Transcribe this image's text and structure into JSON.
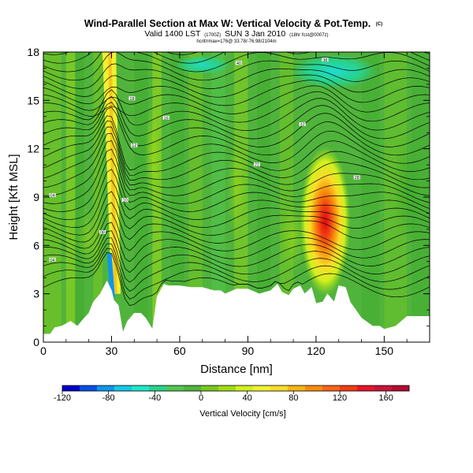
{
  "chart_data": {
    "type": "heatmap",
    "title": "Wind-Parallel Section at Max W: Vertical Velocity & Pot.Temp.",
    "title_tag": "(C)",
    "subtitle": "Valid 1400 LST",
    "subtitle_time": "(1700Z)",
    "subtitle_date": "SUN 3 Jan 2010",
    "subtitle_run": "(18hr fcst@0007z)",
    "subtitle_detail": "hcrit/rmax=176@ 33.78/-76.98/2104m",
    "xlabel": "Distance [nm]",
    "ylabel": "Height [Kft MSL]",
    "xlim": [
      0,
      170
    ],
    "ylim": [
      0,
      18
    ],
    "x_ticks": [
      0,
      30,
      60,
      90,
      120,
      150
    ],
    "y_ticks": [
      0,
      3,
      6,
      9,
      12,
      15,
      18
    ],
    "colorbar": {
      "label": "Vertical Velocity [cm/s]",
      "range": [
        -120,
        180
      ],
      "ticks": [
        -120,
        -80,
        -40,
        0,
        40,
        80,
        120,
        160
      ],
      "colors": [
        "#0000c8",
        "#0050e6",
        "#0a96f0",
        "#14c8e6",
        "#1ee6c8",
        "#28d28c",
        "#50c850",
        "#50b43c",
        "#78c81e",
        "#a0dc14",
        "#d2f01e",
        "#f0f032",
        "#fadc28",
        "#fab414",
        "#fa8c0a",
        "#fa6414",
        "#f03c14",
        "#e61428",
        "#c8143c",
        "#b40a32"
      ]
    },
    "features": {
      "updraft_core": {
        "distance_nm": 124,
        "height_kft": 7.5,
        "max_w_cm_s": 176
      },
      "mountain_wave_band": {
        "distance_nm_at_surface": 31,
        "distance_nm_at_top": 26,
        "sign": "up-down pair"
      }
    },
    "terrain_profile": {
      "distance_nm": [
        0,
        3,
        5,
        8,
        12,
        15,
        18,
        20,
        22,
        25,
        28,
        30,
        31,
        33,
        35,
        37,
        40,
        43,
        45,
        48,
        50,
        53,
        55,
        60,
        65,
        70,
        75,
        78,
        80,
        85,
        90,
        95,
        100,
        103,
        105,
        108,
        110,
        113,
        115,
        118,
        120,
        123,
        125,
        128,
        130,
        133,
        135,
        140,
        145,
        148,
        150,
        155,
        160,
        165,
        170
      ],
      "height_kft": [
        0.5,
        0.5,
        0.9,
        1.0,
        1.3,
        1.0,
        1.5,
        1.8,
        2.5,
        3.0,
        3.8,
        3.2,
        2.6,
        2.3,
        0.6,
        1.3,
        1.8,
        1.8,
        1.5,
        0.8,
        2.8,
        3.6,
        3.5,
        3.5,
        3.4,
        3.4,
        3.2,
        3.2,
        3.0,
        3.3,
        3.3,
        3.0,
        3.2,
        3.6,
        3.1,
        2.9,
        3.3,
        3.5,
        3.0,
        3.4,
        2.4,
        2.5,
        3.0,
        2.5,
        3.5,
        3.4,
        2.5,
        1.5,
        1.0,
        1.0,
        0.8,
        1.0,
        1.6,
        1.6,
        1.6
      ]
    },
    "isentrope_labels": [
      {
        "x_nm": 4,
        "y_kft": 5.1,
        "text": "04"
      },
      {
        "x_nm": 4,
        "y_kft": 9.1,
        "text": "04"
      },
      {
        "x_nm": 26,
        "y_kft": 6.8,
        "text": "08"
      },
      {
        "x_nm": 36,
        "y_kft": 8.8,
        "text": "10"
      },
      {
        "x_nm": 40,
        "y_kft": 12.2,
        "text": "12"
      },
      {
        "x_nm": 54,
        "y_kft": 13.9,
        "text": "16"
      },
      {
        "x_nm": 39,
        "y_kft": 15.1,
        "text": "18"
      },
      {
        "x_nm": 94,
        "y_kft": 11.0,
        "text": "22"
      },
      {
        "x_nm": 114,
        "y_kft": 13.5,
        "text": "32"
      },
      {
        "x_nm": 124,
        "y_kft": 17.5,
        "text": "38"
      },
      {
        "x_nm": 86,
        "y_kft": 17.3,
        "text": "40"
      },
      {
        "x_nm": 138,
        "y_kft": 10.2,
        "text": "28"
      }
    ]
  }
}
